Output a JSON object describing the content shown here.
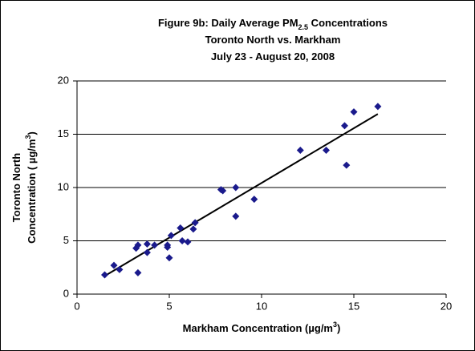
{
  "chart_data": {
    "type": "scatter",
    "title": [
      [
        "Figure 9b: Daily Average PM",
        {
          "sub": "2.5"
        },
        " Concentrations"
      ],
      [
        "Toronto North  vs. Markham"
      ],
      [
        "July 23 - August 20, 2008"
      ]
    ],
    "x_label": [
      "Markham Concentration (µg/m",
      {
        "sup": "3"
      },
      ")"
    ],
    "y_label": [
      [
        "Toronto North"
      ],
      [
        "Concentration ( µg/m",
        {
          "sup": "3"
        },
        ")"
      ]
    ],
    "x": [
      1.5,
      2.0,
      2.3,
      3.2,
      3.3,
      3.3,
      3.8,
      3.8,
      4.2,
      4.9,
      4.9,
      5.0,
      5.1,
      5.6,
      5.7,
      6.0,
      6.3,
      6.4,
      7.8,
      7.9,
      8.6,
      8.6,
      9.6,
      12.1,
      13.5,
      14.5,
      14.6,
      15.0,
      16.3
    ],
    "values": [
      1.8,
      2.7,
      2.3,
      4.3,
      4.6,
      2.0,
      4.7,
      3.9,
      4.6,
      4.6,
      4.4,
      3.4,
      5.5,
      6.2,
      5.0,
      4.9,
      6.1,
      6.7,
      9.8,
      9.7,
      10.0,
      7.3,
      8.9,
      13.5,
      13.5,
      15.8,
      12.1,
      17.1,
      17.6
    ],
    "color": "#1a1a8c",
    "trendline": {
      "x": [
        1.5,
        16.3
      ],
      "values": [
        1.7,
        16.9
      ],
      "color": "#000000"
    },
    "xlim": [
      0,
      20
    ],
    "xticks": [
      0,
      5,
      10,
      15,
      20
    ],
    "ylim": [
      0,
      20
    ],
    "yticks": [
      0,
      5,
      10,
      15,
      20
    ],
    "grid": true
  }
}
